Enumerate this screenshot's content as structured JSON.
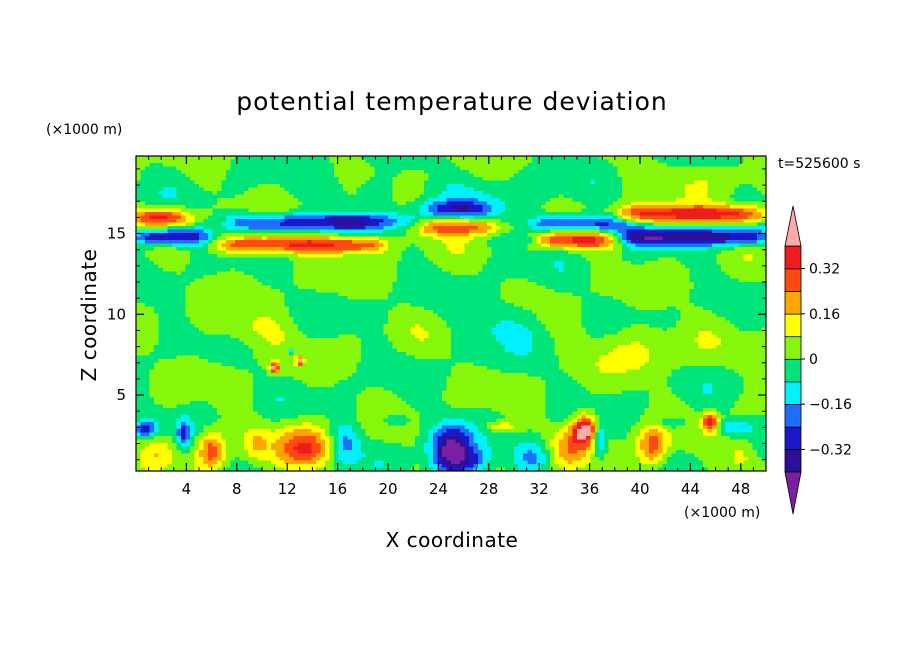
{
  "chart_data": {
    "type": "heatmap",
    "title": "potential temperature deviation",
    "xlabel": "X coordinate",
    "ylabel": "Z coordinate",
    "x_unit": "(×1000 m)",
    "y_unit": "(×1000 m)",
    "time_label": "t=525600 s",
    "xlim": [
      0,
      50
    ],
    "ylim": [
      0.3,
      19.8
    ],
    "x_ticks": [
      4,
      8,
      12,
      16,
      20,
      24,
      28,
      32,
      36,
      40,
      44,
      48
    ],
    "y_ticks": [
      5,
      10,
      15
    ],
    "colorbar": {
      "levels": [
        -0.4,
        -0.32,
        -0.24,
        -0.16,
        -0.08,
        0,
        0.08,
        0.16,
        0.24,
        0.32,
        0.4
      ],
      "labeled_ticks": [
        -0.32,
        -0.16,
        0,
        0.16,
        0.32
      ],
      "tick_labels": [
        "−0.32",
        "−0.16",
        "0",
        "0.16",
        "0.32"
      ],
      "colors": [
        "#7b1fa6",
        "#2c1097",
        "#1a18c8",
        "#1d70ff",
        "#00f0ff",
        "#00e57a",
        "#86f70a",
        "#ffff00",
        "#ffa500",
        "#ff4a12",
        "#ee1c1c",
        "#ffaaaa"
      ],
      "extend": "both"
    },
    "field_description": "Background near 0 (green); strong alternating warm/cold bands around z=14-16.5 km; warm and cold cells near the surface (z<4 km).",
    "features": [
      {
        "type": "band",
        "z": 16.0,
        "x0": 0,
        "x1": 4,
        "value": 0.36
      },
      {
        "type": "band",
        "z": 14.8,
        "x0": 0,
        "x1": 5.5,
        "value": -0.38
      },
      {
        "type": "band",
        "z": 15.7,
        "x0": 7.5,
        "x1": 19.5,
        "value": -0.3
      },
      {
        "type": "band",
        "z": 14.3,
        "x0": 6.5,
        "x1": 19.5,
        "value": 0.34
      },
      {
        "type": "band",
        "z": 15.4,
        "x0": 22.5,
        "x1": 28.5,
        "value": 0.28
      },
      {
        "type": "band",
        "z": 16.5,
        "x0": 23,
        "x1": 28,
        "value": -0.26
      },
      {
        "type": "band",
        "z": 15.6,
        "x0": 31.5,
        "x1": 39,
        "value": -0.3
      },
      {
        "type": "band",
        "z": 14.6,
        "x0": 32,
        "x1": 38,
        "value": 0.34
      },
      {
        "type": "band",
        "z": 16.2,
        "x0": 38.5,
        "x1": 50,
        "value": 0.36
      },
      {
        "type": "band",
        "z": 14.8,
        "x0": 38.5,
        "x1": 50,
        "value": -0.36
      },
      {
        "type": "blob",
        "x": 6,
        "z": 1.6,
        "value": 0.24
      },
      {
        "type": "blob",
        "x": 13.5,
        "z": 1.7,
        "value": 0.3
      },
      {
        "type": "blob",
        "x": 25,
        "z": 1.7,
        "value": -0.4
      },
      {
        "type": "blob",
        "x": 35.5,
        "z": 3,
        "value": 0.42
      },
      {
        "type": "blob",
        "x": 41,
        "z": 1.8,
        "value": 0.24
      },
      {
        "type": "blob",
        "x": 45.5,
        "z": 3.2,
        "value": 0.38
      },
      {
        "type": "blob",
        "x": 11,
        "z": 6.7,
        "value": 0.42
      },
      {
        "type": "blob",
        "x": 1,
        "z": 2.8,
        "value": -0.34
      }
    ]
  }
}
